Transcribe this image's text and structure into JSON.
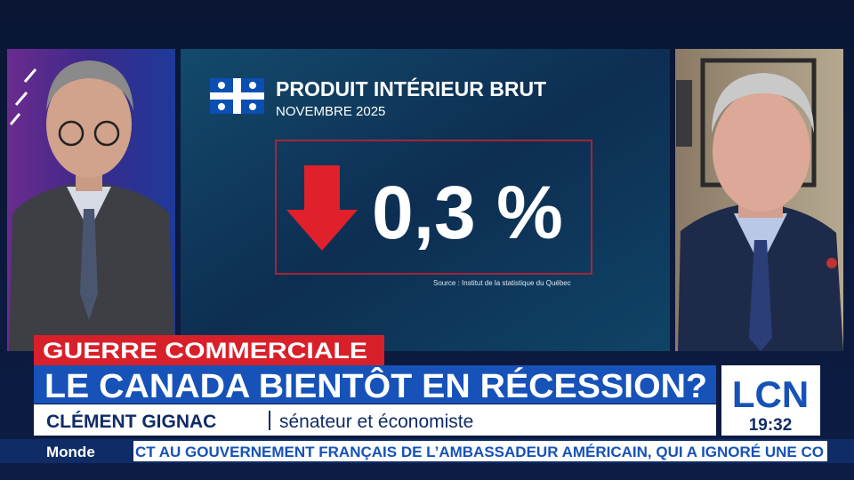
{
  "graphic": {
    "title": "PRODUIT INTÉRIEUR BRUT",
    "subtitle": "NOVEMBRE 2025",
    "value": "0,3 %",
    "source": "Source : Institut de la statistique du Québec"
  },
  "banner": {
    "topic": "GUERRE COMMERCIALE",
    "headline": "LE CANADA BIENTÔT EN RÉCESSION?",
    "guest_name": "CLÉMENT GIGNAC",
    "guest_role": "sénateur et économiste"
  },
  "logo": {
    "brand": "LCN",
    "time": "19:32"
  },
  "ticker": {
    "section": "Monde",
    "text": "CT AU GOUVERNEMENT FRANÇAIS DE L’AMBASSADEUR AMÉRICAIN, QUI A IGNORÉ UNE CO"
  }
}
